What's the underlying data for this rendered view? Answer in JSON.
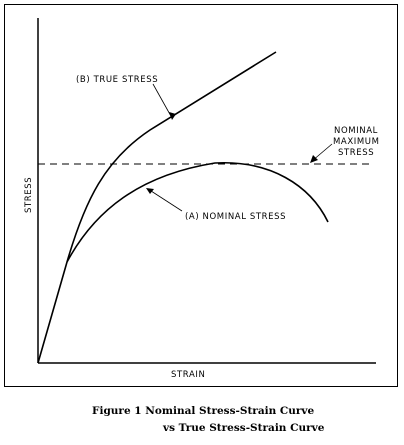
{
  "labels": {
    "stress_axis": "STRESS",
    "strain_axis": "STRAIN",
    "true_stress": "(B) TRUE STRESS",
    "nominal_stress": "(A) NOMINAL STRESS",
    "nominal_max_line1": "NOMINAL",
    "nominal_max_line2": "MAXIMUM",
    "nominal_max_line3": "STRESS"
  },
  "caption": {
    "line1": "Figure 1  Nominal Stress-Strain Curve",
    "line2": "vs True Stress-Strain Curve"
  }
}
